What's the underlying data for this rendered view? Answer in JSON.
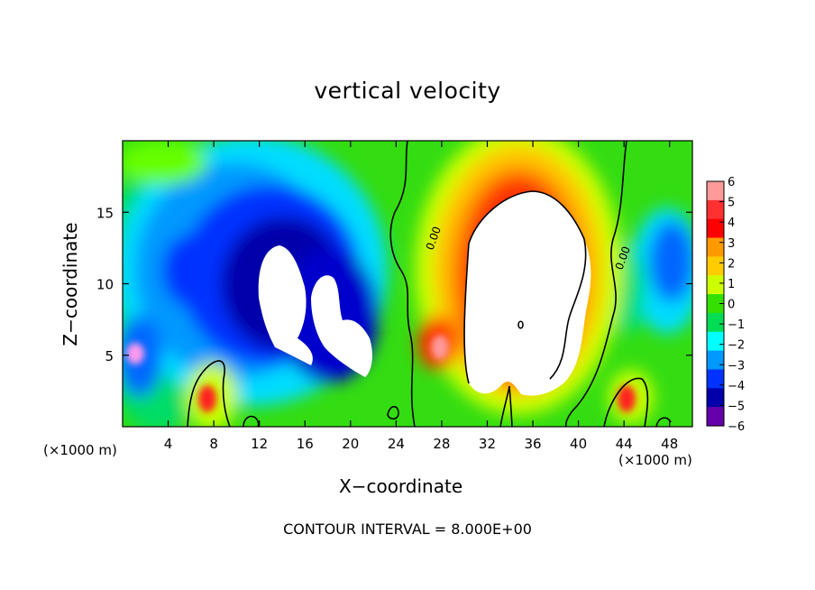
{
  "chart_data": {
    "type": "heatmap",
    "title": "vertical velocity",
    "xlabel": "X−coordinate",
    "ylabel": "Z−coordinate",
    "x_unit": "(×1000 m)",
    "xlim": [
      0,
      50
    ],
    "ylim": [
      0,
      20
    ],
    "x_ticks": [
      4,
      8,
      12,
      16,
      20,
      24,
      28,
      32,
      36,
      40,
      44,
      48
    ],
    "y_ticks": [
      5,
      10,
      15
    ],
    "colorbar": {
      "ticks": [
        6,
        5,
        4,
        3,
        2,
        1,
        0,
        -1,
        -2,
        -3,
        -4,
        -5,
        -6
      ],
      "tick_labels": [
        "6",
        "5",
        "4",
        "3",
        "2",
        "1",
        "0",
        "−1",
        "−2",
        "−3",
        "−4",
        "−5",
        "−6"
      ],
      "colors_top_to_bottom": [
        "#ff9a9a",
        "#ff3030",
        "#ff0000",
        "#ff9900",
        "#ffcc00",
        "#ccff00",
        "#33e000",
        "#00dd55",
        "#00ffff",
        "#0099ff",
        "#0033ff",
        "#0000aa",
        "#6600aa"
      ]
    },
    "features": [
      {
        "label": "0.00",
        "x": 28.5,
        "z": 12.2
      },
      {
        "label": "0.00",
        "x": 44.0,
        "z": 11.6
      }
    ],
    "annotation": "CONTOUR INTERVAL = 8.000E+00"
  }
}
